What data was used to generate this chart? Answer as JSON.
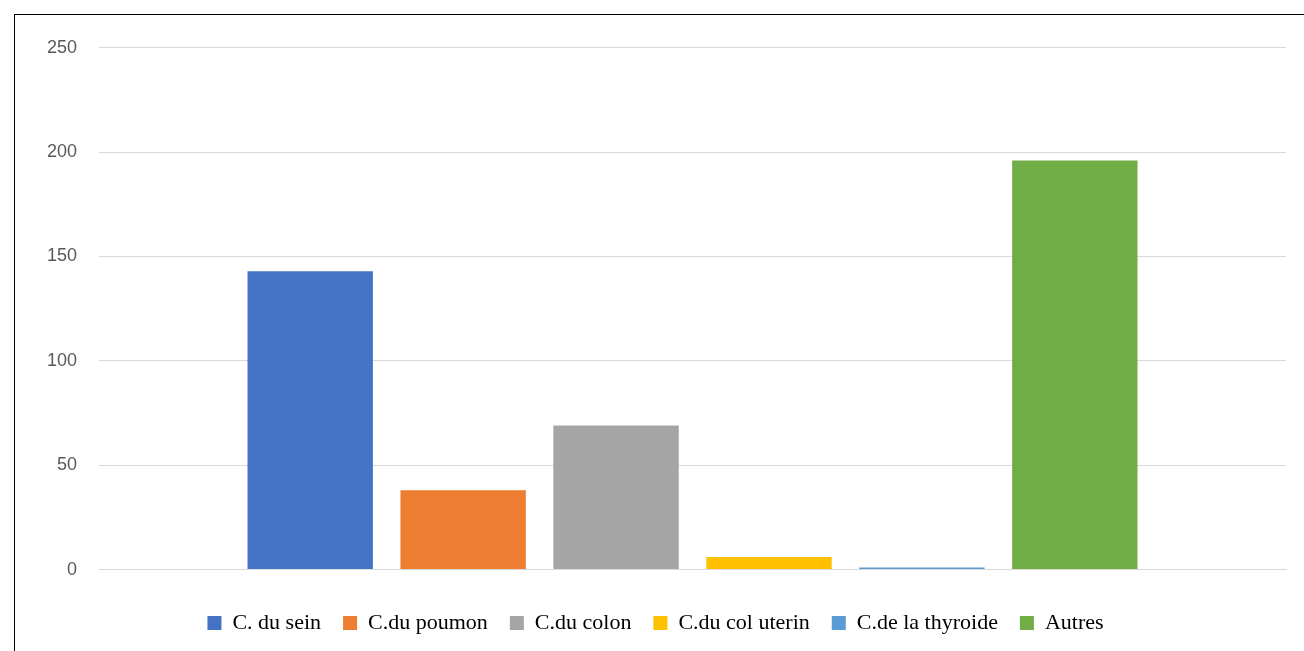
{
  "chart_data": {
    "type": "bar",
    "categories": [
      null
    ],
    "series": [
      {
        "name": "C. du sein",
        "color": "#4472c4",
        "values": [
          143
        ]
      },
      {
        "name": "C.du poumon",
        "color": "#ed7d31",
        "values": [
          38
        ]
      },
      {
        "name": "C.du colon",
        "color": "#a5a5a5",
        "values": [
          69
        ]
      },
      {
        "name": "C.du col uterin",
        "color": "#ffc000",
        "values": [
          6
        ]
      },
      {
        "name": "C.de la thyroide",
        "color": "#5b9bd5",
        "values": [
          1
        ]
      },
      {
        "name": "Autres",
        "color": "#70ad47",
        "values": [
          196
        ]
      }
    ],
    "ylim": [
      0,
      250
    ],
    "yticks": [
      0,
      50,
      100,
      150,
      200,
      250
    ],
    "grid": "y",
    "legend": "bottom"
  }
}
